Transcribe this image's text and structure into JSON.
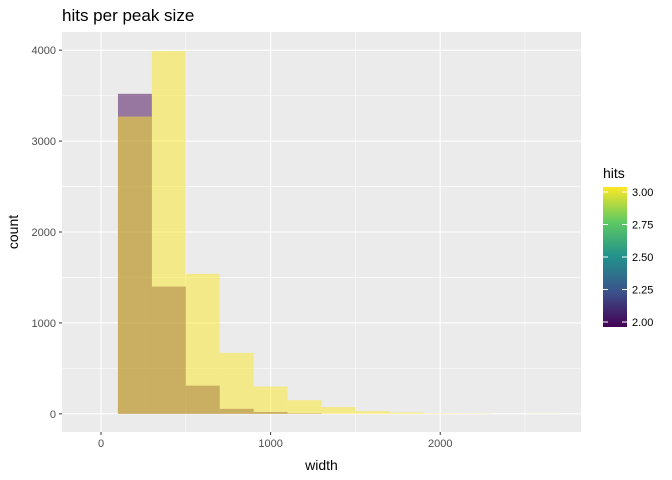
{
  "chart_data": {
    "type": "bar",
    "subtype": "histogram",
    "title": "hits per peak size",
    "xlabel": "width",
    "ylabel": "count",
    "xlim": [
      -230,
      2830
    ],
    "ylim": [
      -200,
      4200
    ],
    "x_ticks": [
      0,
      1000,
      2000
    ],
    "y_ticks": [
      0,
      1000,
      2000,
      3000,
      4000
    ],
    "bin_width": 200,
    "series": [
      {
        "hits": 2,
        "color": "#440154",
        "bins": [
          {
            "x0": 100,
            "x1": 300,
            "count": 3520
          },
          {
            "x0": 300,
            "x1": 500,
            "count": 1400
          },
          {
            "x0": 500,
            "x1": 700,
            "count": 310
          },
          {
            "x0": 700,
            "x1": 900,
            "count": 55
          },
          {
            "x0": 900,
            "x1": 1100,
            "count": 20
          },
          {
            "x0": 1100,
            "x1": 1300,
            "count": 5
          }
        ]
      },
      {
        "hits": 3,
        "color": "#fde725",
        "bins": [
          {
            "x0": 100,
            "x1": 300,
            "count": 3270
          },
          {
            "x0": 300,
            "x1": 500,
            "count": 3990
          },
          {
            "x0": 500,
            "x1": 700,
            "count": 1540
          },
          {
            "x0": 700,
            "x1": 900,
            "count": 670
          },
          {
            "x0": 900,
            "x1": 1100,
            "count": 300
          },
          {
            "x0": 1100,
            "x1": 1300,
            "count": 150
          },
          {
            "x0": 1300,
            "x1": 1500,
            "count": 75
          },
          {
            "x0": 1500,
            "x1": 1700,
            "count": 30
          },
          {
            "x0": 1700,
            "x1": 1900,
            "count": 15
          },
          {
            "x0": 1900,
            "x1": 2100,
            "count": 5
          },
          {
            "x0": 2100,
            "x1": 2300,
            "count": 3
          },
          {
            "x0": 2500,
            "x1": 2700,
            "count": 2
          }
        ]
      }
    ],
    "legend": {
      "title": "hits",
      "position": "right",
      "labels": [
        "3.00",
        "2.75",
        "2.50",
        "2.25",
        "2.00"
      ],
      "colorbar_stops": [
        "#440154",
        "#3b528b",
        "#21918c",
        "#5ec962",
        "#fde725"
      ]
    },
    "colors": {
      "panel_background": "#ebebeb",
      "grid": "#ffffff"
    }
  }
}
